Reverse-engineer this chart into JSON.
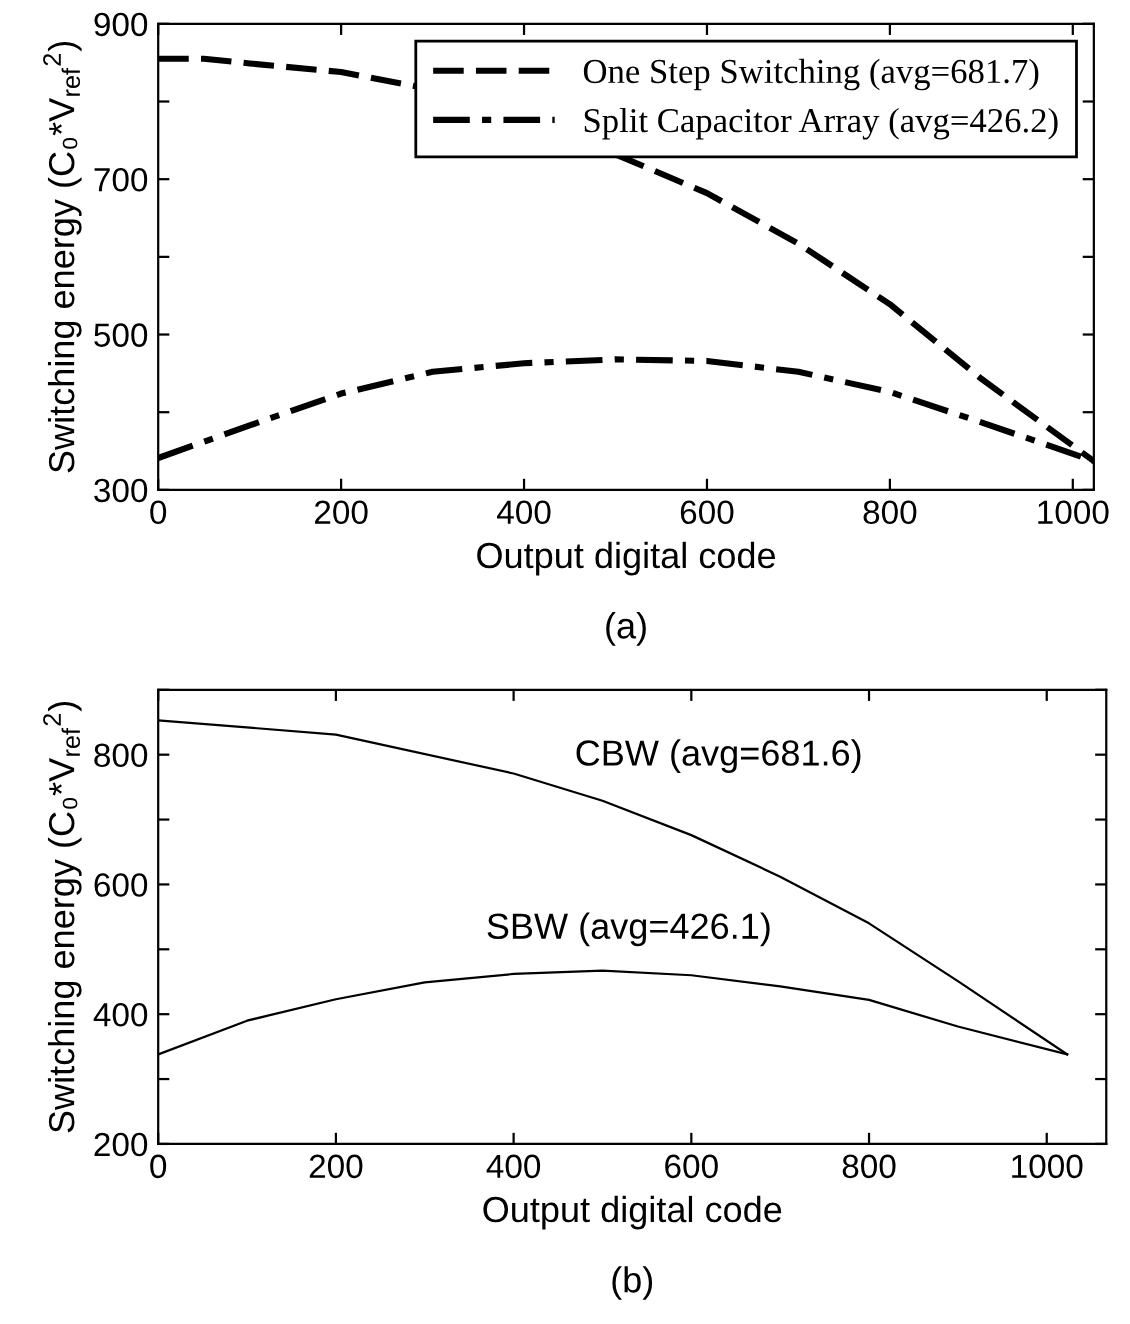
{
  "chart_data": [
    {
      "type": "line",
      "xlabel": "Output digital code",
      "ylabel": "Switching energy (C₀*V$_{ref}$$^{2}$)",
      "annotations": [
        "(a)"
      ],
      "xlim": [
        0,
        1023
      ],
      "xticks": [
        0,
        200,
        400,
        600,
        800,
        1000
      ],
      "ylim": [
        300,
        900
      ],
      "yticks": [
        300,
        {
          "value": 400,
          "label": null
        },
        500,
        {
          "value": 600,
          "label": null
        },
        700,
        {
          "value": 800,
          "label": null
        },
        900
      ],
      "grid": false,
      "legend": "top right",
      "series": [
        {
          "name": "One Step Switching (avg=681.7)",
          "color": "#000000",
          "line_style": "dashed",
          "x": [
            0,
            50,
            100,
            200,
            280,
            500,
            600,
            700,
            800,
            900,
            1023
          ],
          "values": [
            855,
            855,
            849,
            838,
            820,
            732,
            682,
            617,
            539,
            443,
            337
          ]
        },
        {
          "name": "Split Capacitor Array (avg=426.2)",
          "color": "#000000",
          "line_style": "dashdot",
          "x": [
            0,
            100,
            200,
            300,
            400,
            500,
            600,
            700,
            800,
            900,
            1023
          ],
          "values": [
            341,
            383,
            424,
            452,
            463,
            468,
            466,
            452,
            426,
            387,
            337
          ]
        }
      ]
    },
    {
      "type": "line",
      "xlabel": "Output digital code",
      "ylabel": "Switching energy (C₀*V$_{ref}$$^{2}$)",
      "annotations": [
        "(b)"
      ],
      "xlim": [
        0,
        1067
      ],
      "xticks": [
        0,
        200,
        400,
        600,
        800,
        1000
      ],
      "ylim": [
        200,
        900
      ],
      "yticks": [
        200,
        {
          "value": 300,
          "label": null
        },
        400,
        {
          "value": 500,
          "label": null
        },
        600,
        {
          "value": 700,
          "label": null
        },
        800,
        {
          "value": 900,
          "label": null
        }
      ],
      "grid": false,
      "series": [
        {
          "name": "CBW (avg=681.6)",
          "color": "#000000",
          "line_style": "solid",
          "x": [
            0,
            200,
            400,
            500,
            600,
            700,
            800,
            900,
            1023
          ],
          "values": [
            853,
            831,
            771,
            729,
            676,
            612,
            540,
            451,
            338
          ]
        },
        {
          "name": "SBW (avg=426.1)",
          "color": "#000000",
          "line_style": "solid",
          "x": [
            0,
            100,
            200,
            300,
            400,
            500,
            600,
            700,
            800,
            900,
            1023
          ],
          "values": [
            338,
            390,
            423,
            449,
            462,
            467,
            460,
            443,
            422,
            381,
            338
          ]
        }
      ]
    }
  ]
}
